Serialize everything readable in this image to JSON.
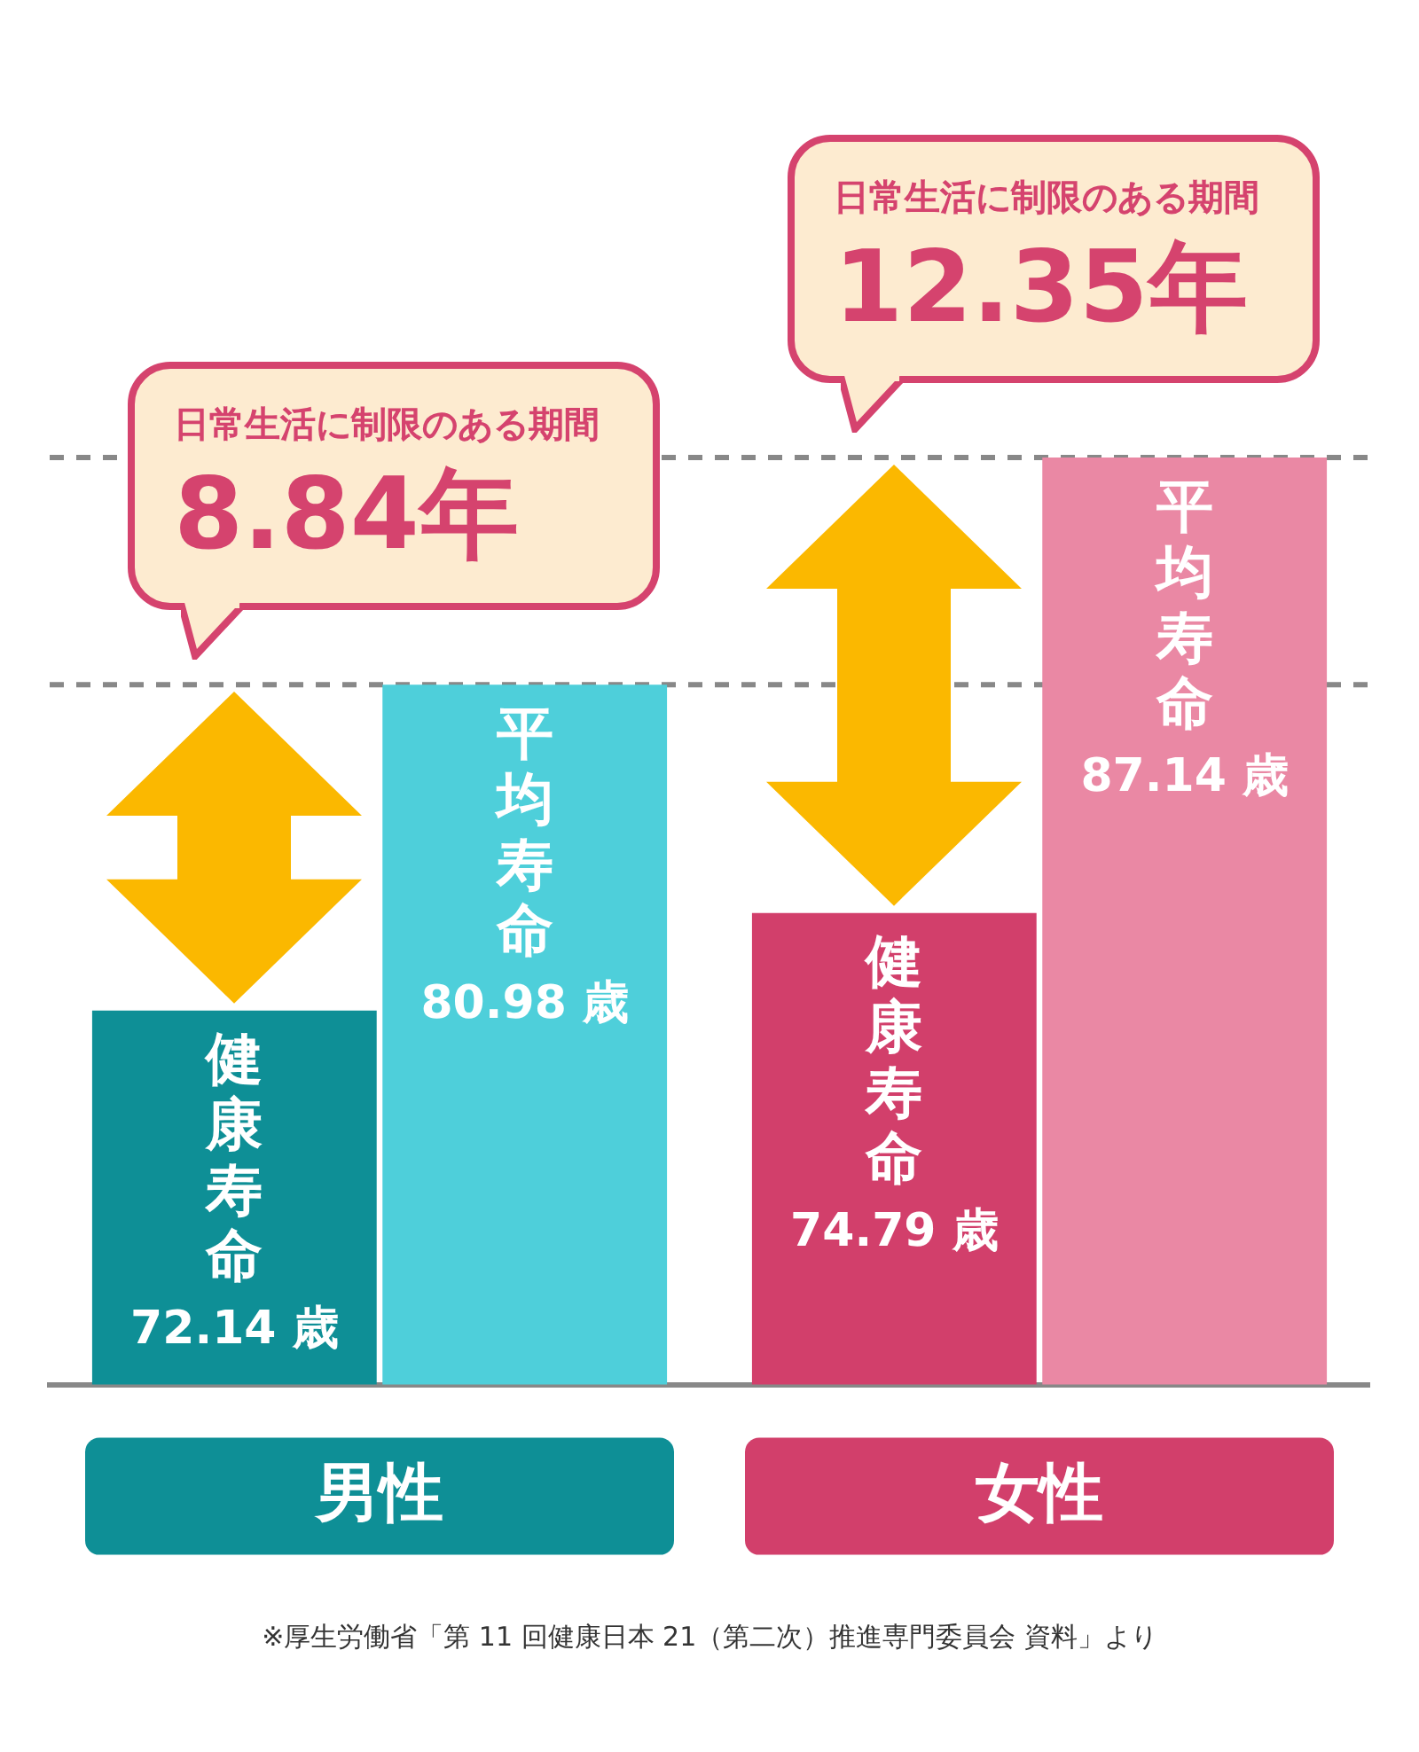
{
  "chart_data": {
    "type": "bar",
    "categories": [
      "男性",
      "女性"
    ],
    "series": [
      {
        "name": "健康寿命",
        "colors": [
          "#0e8f96",
          "#d23f6b"
        ],
        "values": [
          72.14,
          74.79
        ],
        "value_labels": [
          "72.14 歳",
          "74.79 歳"
        ]
      },
      {
        "name": "平均寿命",
        "colors": [
          "#4ecfda",
          "#ea88a4"
        ],
        "values": [
          80.98,
          87.14
        ],
        "value_labels": [
          "80.98 歳",
          "87.14 歳"
        ]
      }
    ],
    "ylim": [
      62,
      87.14
    ],
    "tick_labels": "x",
    "grid": false,
    "legend": false,
    "ref_lines": [
      {
        "axis": "y",
        "value": 80.98,
        "color": "#888888",
        "line_style": "dashed"
      },
      {
        "axis": "y",
        "value": 87.14,
        "color": "#888888",
        "line_style": "dashed"
      }
    ],
    "annotations": [
      "日常生活に制限のある期間",
      {
        "text": "8.84年",
        "x": "男性",
        "y": 80.98
      },
      "日常生活に制限のある期間",
      {
        "text": "12.35年",
        "x": "女性",
        "y": 87.14
      },
      "※厚生労働省「第 11 回健康日本 21（第二次）推進専門委員会 資料」より"
    ]
  }
}
